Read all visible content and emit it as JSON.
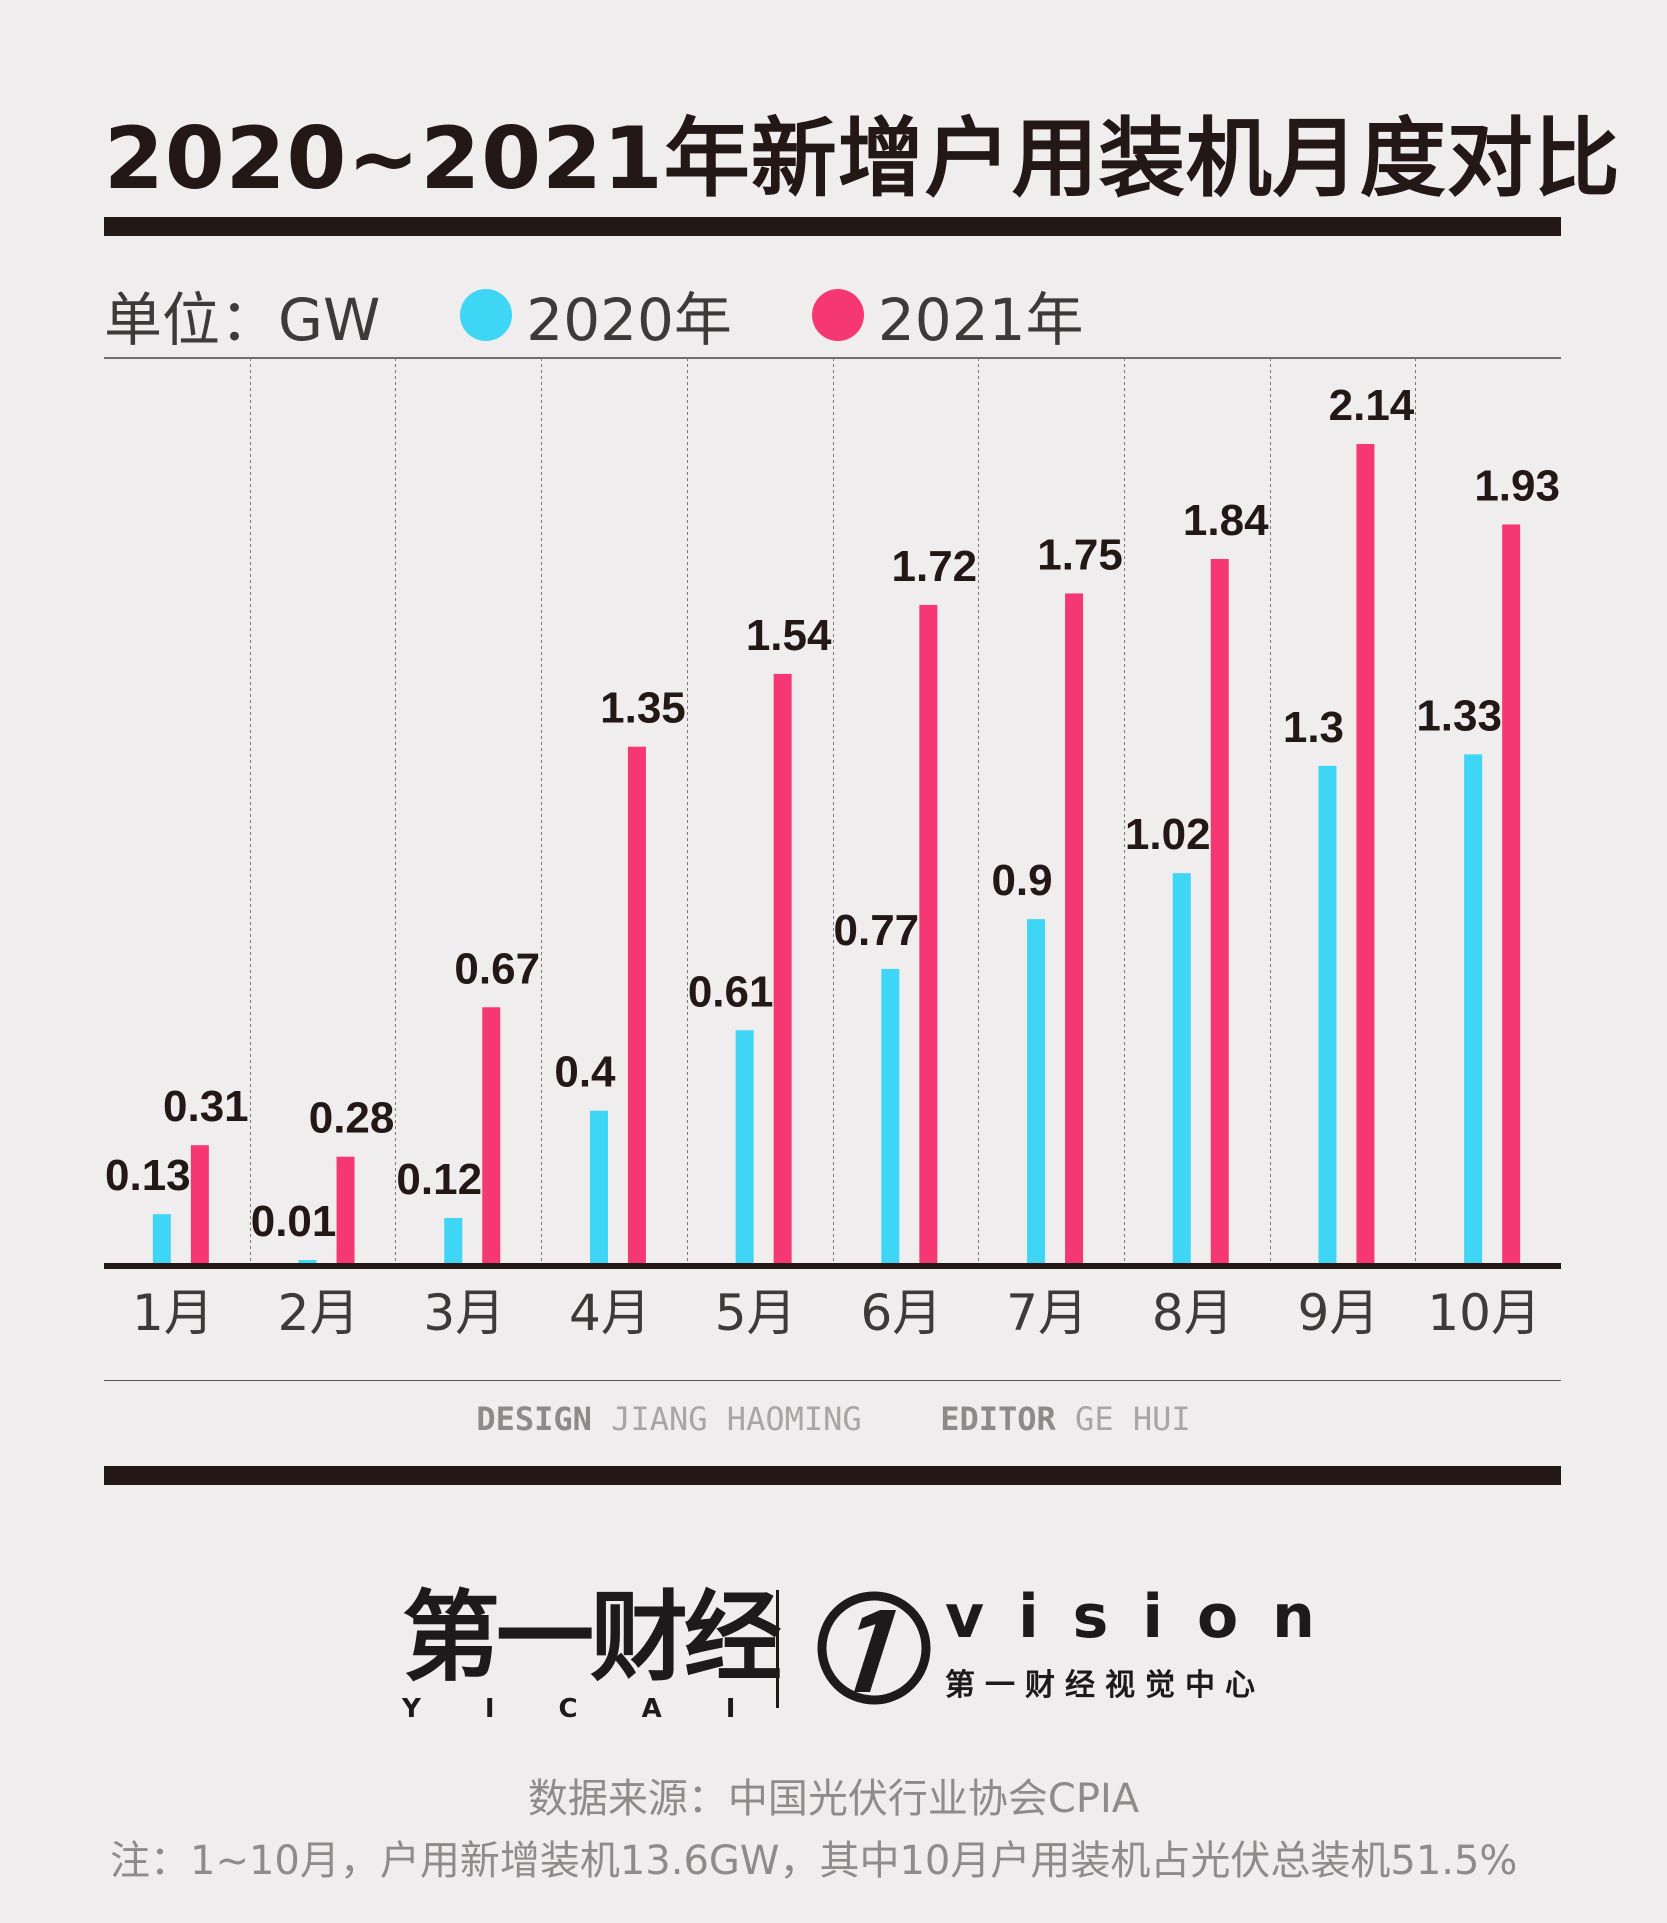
{
  "title": "2020~2021年新增户用装机月度对比",
  "legend": {
    "unit": "单位：GW",
    "series_2020": "2020年",
    "series_2021": "2021年"
  },
  "colors": {
    "series_2020": "#3fd6f5",
    "series_2021": "#f53873",
    "dark": "#231815"
  },
  "chart_data": {
    "type": "bar",
    "title": "2020~2021年新增户用装机月度对比",
    "ylabel": "GW",
    "xlabel": "",
    "categories": [
      "1月",
      "2月",
      "3月",
      "4月",
      "5月",
      "6月",
      "7月",
      "8月",
      "9月",
      "10月"
    ],
    "series": [
      {
        "name": "2020年",
        "values": [
          0.13,
          0.01,
          0.12,
          0.4,
          0.61,
          0.77,
          0.9,
          1.02,
          1.3,
          1.33
        ]
      },
      {
        "name": "2021年",
        "values": [
          0.31,
          0.28,
          0.67,
          1.35,
          1.54,
          1.72,
          1.75,
          1.84,
          2.14,
          1.93
        ]
      }
    ],
    "ylim": [
      0,
      2.14
    ],
    "grid": "vertical dashed separators",
    "legend": "top-left"
  },
  "credits": {
    "design_label": "DESIGN",
    "design_value": "JIANG HAOMING",
    "editor_label": "EDITOR",
    "editor_value": "GE HUI"
  },
  "logo": {
    "brand_cn": "第一财经",
    "brand_en": "YICAI",
    "vision_en": "vision",
    "vision_cn": "第一财经视觉中心"
  },
  "source": "数据来源：中国光伏行业协会CPIA",
  "note": "注：1~10月，户用新增装机13.6GW，其中10月户用装机占光伏总装机51.5%"
}
